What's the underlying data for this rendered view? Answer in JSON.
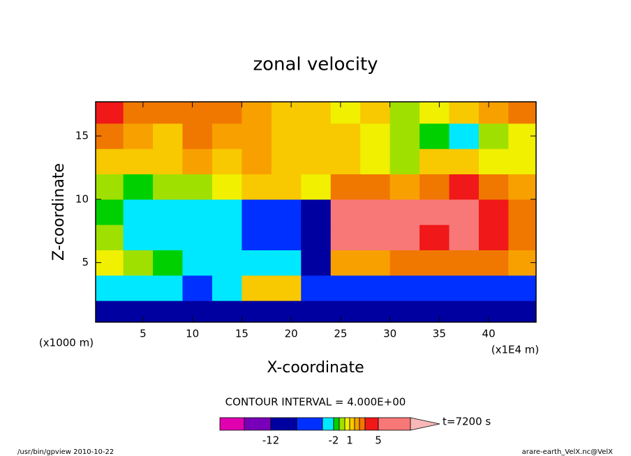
{
  "chart_data": {
    "type": "contourf",
    "title": "zonal velocity",
    "x_label": "X-coordinate",
    "y_label": "Z-coordinate",
    "x_unit": "(x1000 m)",
    "x_unit2": "(x1E4 m)",
    "xlim": [
      0.2,
      44.8
    ],
    "ylim": [
      0.3,
      17.7
    ],
    "xticks": [
      5,
      10,
      15,
      20,
      25,
      30,
      35,
      40
    ],
    "yticks": [
      5,
      10,
      15
    ],
    "x_bins": [
      0,
      3,
      6,
      9,
      12,
      15,
      18,
      21,
      24,
      27,
      30,
      33,
      36,
      39,
      42,
      45
    ],
    "z_bins": [
      0,
      2,
      4,
      6,
      8,
      10,
      12,
      14,
      16,
      18
    ],
    "values": [
      [
        -9,
        -9,
        -9,
        -9,
        -9,
        -9,
        -9,
        -10,
        -10,
        -11,
        -12,
        -11,
        -10,
        -10,
        -9
      ],
      [
        -3,
        -3,
        -3,
        -5,
        -3,
        1,
        1,
        -6,
        -7,
        -6,
        -6,
        -6,
        -5,
        -5,
        -5
      ],
      [
        0,
        -1,
        -2,
        -3,
        -3,
        -3,
        -4,
        -10,
        2,
        2,
        3,
        3,
        3,
        3,
        2
      ],
      [
        -1,
        -3,
        -3,
        -3,
        -3,
        -8,
        -8,
        -10,
        7,
        6,
        5,
        4,
        5,
        4,
        3
      ],
      [
        -2,
        -3,
        -3,
        -3,
        -3,
        -8,
        -8,
        -10,
        7,
        6,
        6,
        5,
        6,
        4,
        3
      ],
      [
        -1,
        -2,
        -1,
        -1,
        0,
        1,
        1,
        0,
        3,
        3,
        2,
        3,
        4,
        3,
        2
      ],
      [
        1,
        1,
        1,
        2,
        1,
        2,
        1,
        1,
        1,
        0,
        -1,
        1,
        1,
        0,
        0
      ],
      [
        3,
        2,
        1,
        3,
        2,
        2,
        1,
        1,
        1,
        0,
        -1,
        -2,
        -3,
        -1,
        0
      ],
      [
        4,
        3,
        3,
        3,
        3,
        2,
        1,
        1,
        0,
        1,
        -1,
        0,
        1,
        2,
        3
      ]
    ],
    "contour_interval": "CONTOUR INTERVAL = 4.000E+00",
    "colorbar": {
      "levels": [
        -20,
        -16,
        -12,
        -8,
        -4,
        -2,
        -1,
        0,
        1,
        2,
        3,
        4,
        5,
        10
      ],
      "colors": [
        "#e000b0",
        "#7800b8",
        "#0000a0",
        "#0030ff",
        "#00e8ff",
        "#00d000",
        "#a0e000",
        "#f0f000",
        "#f8c800",
        "#f8a000",
        "#f07800",
        "#f01818",
        "#f87878",
        "#f8b8b8"
      ],
      "ticks": [
        -12,
        -2,
        1,
        5
      ]
    },
    "time_label": "t=7200 s",
    "footer_left": "/usr/bin/gpview  2010-10-22",
    "footer_right": "arare-earth_VelX.nc@VelX"
  }
}
